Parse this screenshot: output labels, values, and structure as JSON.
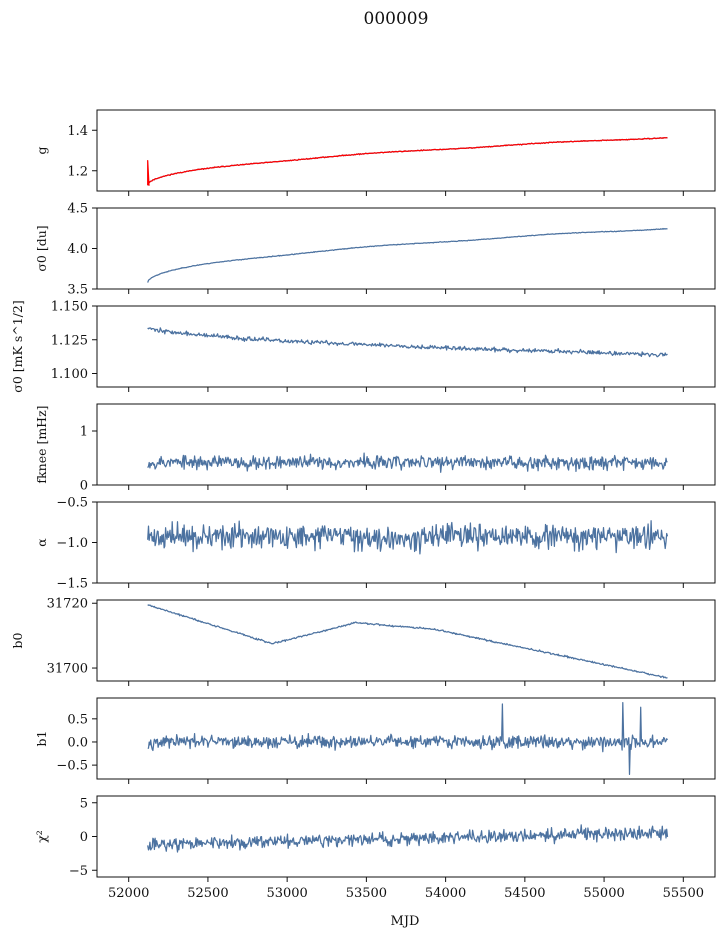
{
  "figure": {
    "title": "000009",
    "xlabel": "MJD"
  },
  "chart_data": [
    {
      "type": "line",
      "ylabel": "g",
      "ylim": [
        1.1,
        1.5
      ],
      "yticks": [
        "1.2",
        "1.4"
      ],
      "series": [
        {
          "color": "#4c72a0",
          "kind": "trend",
          "start": 1.13,
          "end": 1.365,
          "noise": 0.002,
          "seed": 11
        },
        {
          "color": "#ff0000",
          "kind": "trend",
          "start": 1.13,
          "end": 1.365,
          "noise": 0.002,
          "seed": 11,
          "spike": 1.25
        }
      ]
    },
    {
      "type": "line",
      "ylabel": "σ0 [du]",
      "ylim": [
        3.5,
        4.5
      ],
      "yticks": [
        "3.5",
        "4.0",
        "4.5"
      ],
      "series": [
        {
          "color": "#4c72a0",
          "kind": "trend",
          "start": 3.58,
          "end": 4.25,
          "noise": 0.004,
          "seed": 23
        }
      ]
    },
    {
      "type": "line",
      "ylabel": "σ0 [mK s^1/2]",
      "ylim": [
        1.09,
        1.15
      ],
      "yticks": [
        "1.100",
        "1.125",
        "1.150"
      ],
      "series": [
        {
          "color": "#4c72a0",
          "kind": "trend",
          "start": 1.135,
          "end": 1.114,
          "noise": 0.0015,
          "seed": 37
        }
      ]
    },
    {
      "type": "line",
      "ylabel": "fknee [mHz]",
      "ylim": [
        0,
        1.5
      ],
      "yticks": [
        "0",
        "1"
      ],
      "series": [
        {
          "color": "#4c72a0",
          "kind": "noise",
          "mean": 0.42,
          "amp": 0.12,
          "seed": 53
        }
      ]
    },
    {
      "type": "line",
      "ylabel": "α",
      "ylim": [
        -1.5,
        -0.5
      ],
      "yticks": [
        "-1.5",
        "-1.0",
        "-0.5"
      ],
      "series": [
        {
          "color": "#4c72a0",
          "kind": "noise",
          "mean": -0.93,
          "amp": 0.14,
          "seed": 71
        }
      ]
    },
    {
      "type": "line",
      "ylabel": "b0",
      "ylim": [
        31696,
        31721
      ],
      "yticks": [
        "31700",
        "31720"
      ],
      "series": [
        {
          "color": "#4c72a0",
          "kind": "wave",
          "noise": 0.25,
          "seed": 89
        }
      ]
    },
    {
      "type": "line",
      "ylabel": "b1",
      "ylim": [
        -0.8,
        0.95
      ],
      "yticks": [
        "-0.5",
        "0.0",
        "0.5"
      ],
      "series": [
        {
          "color": "#4c72a0",
          "kind": "noise",
          "mean": 0.0,
          "amp": 0.13,
          "seed": 97,
          "spikes": [
            [
              54360,
              0.82
            ],
            [
              55120,
              0.85
            ],
            [
              55160,
              -0.7
            ],
            [
              55230,
              0.75
            ]
          ]
        }
      ]
    },
    {
      "type": "line",
      "ylabel": "χ²",
      "ylim": [
        -6,
        6
      ],
      "yticks": [
        "-5",
        "0",
        "5"
      ],
      "series": [
        {
          "color": "#4c72a0",
          "kind": "noise",
          "mean": -1.2,
          "meanEnd": 0.6,
          "amp": 0.9,
          "seed": 113
        }
      ]
    }
  ],
  "x_axis": {
    "xlim": [
      51800,
      55700
    ],
    "xrange_data": [
      52120,
      55400
    ],
    "xticks": [
      "52000",
      "52500",
      "53000",
      "53500",
      "54000",
      "54500",
      "55000",
      "55500"
    ]
  }
}
